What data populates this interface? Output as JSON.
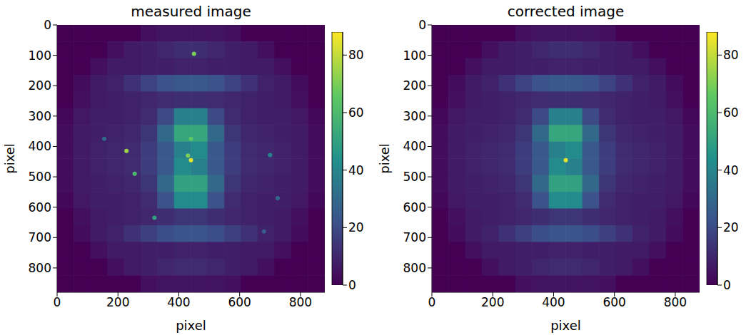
{
  "chart_data": [
    {
      "type": "heatmap",
      "title": "measured image",
      "x_label": "pixel",
      "y_label": "pixel",
      "xlim": [
        0,
        880
      ],
      "ylim": [
        880,
        0
      ],
      "xticks": [
        0,
        200,
        400,
        600,
        800
      ],
      "yticks": [
        0,
        100,
        200,
        300,
        400,
        500,
        600,
        700,
        800
      ],
      "color": "viridis",
      "cells": [
        [
          0,
          0,
          0,
          0,
          0,
          4,
          5,
          5,
          5,
          5,
          4,
          0,
          0,
          0,
          0,
          0
        ],
        [
          0,
          0,
          0,
          4,
          7,
          8,
          10,
          12,
          12,
          10,
          8,
          7,
          4,
          0,
          0,
          0
        ],
        [
          0,
          0,
          4,
          7,
          7,
          8,
          8,
          9,
          9,
          8,
          8,
          7,
          7,
          4,
          0,
          0
        ],
        [
          0,
          3,
          7,
          9,
          13,
          18,
          22,
          24,
          24,
          22,
          18,
          13,
          9,
          7,
          3,
          0
        ],
        [
          0,
          4,
          7,
          8,
          9,
          10,
          11,
          12,
          12,
          11,
          10,
          9,
          8,
          7,
          4,
          0
        ],
        [
          2,
          6,
          8,
          8,
          9,
          11,
          20,
          38,
          38,
          20,
          11,
          9,
          8,
          8,
          6,
          2
        ],
        [
          3,
          7,
          8,
          9,
          10,
          14,
          30,
          52,
          52,
          30,
          14,
          10,
          9,
          8,
          7,
          3
        ],
        [
          3,
          7,
          9,
          10,
          11,
          16,
          24,
          38,
          42,
          24,
          16,
          11,
          10,
          9,
          7,
          3
        ],
        [
          3,
          7,
          9,
          10,
          11,
          16,
          24,
          42,
          38,
          24,
          16,
          11,
          10,
          9,
          7,
          3
        ],
        [
          3,
          7,
          8,
          9,
          10,
          14,
          30,
          50,
          50,
          30,
          14,
          10,
          9,
          8,
          7,
          3
        ],
        [
          2,
          6,
          8,
          8,
          9,
          11,
          22,
          42,
          42,
          22,
          11,
          9,
          8,
          8,
          6,
          2
        ],
        [
          0,
          4,
          7,
          8,
          9,
          10,
          12,
          14,
          14,
          12,
          10,
          9,
          8,
          7,
          4,
          0
        ],
        [
          0,
          3,
          7,
          9,
          13,
          17,
          21,
          23,
          23,
          21,
          17,
          13,
          9,
          7,
          3,
          0
        ],
        [
          0,
          0,
          4,
          7,
          7,
          8,
          8,
          9,
          9,
          8,
          8,
          7,
          7,
          4,
          0,
          0
        ],
        [
          0,
          0,
          0,
          4,
          7,
          8,
          10,
          11,
          11,
          10,
          8,
          7,
          4,
          0,
          0,
          0
        ],
        [
          0,
          0,
          0,
          0,
          0,
          4,
          5,
          5,
          5,
          5,
          4,
          0,
          0,
          0,
          0,
          0
        ]
      ],
      "spots": [
        {
          "x": 440,
          "y": 445,
          "value": 85
        },
        {
          "x": 450,
          "y": 95,
          "value": 70
        },
        {
          "x": 228,
          "y": 415,
          "value": 75
        },
        {
          "x": 255,
          "y": 490,
          "value": 60
        },
        {
          "x": 320,
          "y": 635,
          "value": 50
        },
        {
          "x": 440,
          "y": 375,
          "value": 65
        },
        {
          "x": 430,
          "y": 430,
          "value": 70
        },
        {
          "x": 700,
          "y": 428,
          "value": 40
        },
        {
          "x": 725,
          "y": 570,
          "value": 30
        },
        {
          "x": 155,
          "y": 375,
          "value": 30
        },
        {
          "x": 680,
          "y": 680,
          "value": 25
        }
      ],
      "colorbar": {
        "range": [
          0,
          88
        ],
        "ticks": [
          0,
          20,
          40,
          60,
          80
        ]
      }
    },
    {
      "type": "heatmap",
      "title": "corrected image",
      "x_label": "pixel",
      "y_label": "pixel",
      "xlim": [
        0,
        880
      ],
      "ylim": [
        880,
        0
      ],
      "xticks": [
        0,
        200,
        400,
        600,
        800
      ],
      "yticks": [
        0,
        100,
        200,
        300,
        400,
        500,
        600,
        700,
        800
      ],
      "color": "viridis",
      "cells": [
        [
          0,
          0,
          0,
          0,
          0,
          4,
          5,
          5,
          5,
          5,
          4,
          0,
          0,
          0,
          0,
          0
        ],
        [
          0,
          0,
          0,
          4,
          7,
          8,
          10,
          12,
          12,
          10,
          8,
          7,
          4,
          0,
          0,
          0
        ],
        [
          0,
          0,
          4,
          7,
          7,
          8,
          8,
          9,
          9,
          8,
          8,
          7,
          7,
          4,
          0,
          0
        ],
        [
          0,
          3,
          7,
          9,
          13,
          18,
          22,
          24,
          24,
          22,
          18,
          13,
          9,
          7,
          3,
          0
        ],
        [
          0,
          4,
          7,
          8,
          9,
          10,
          11,
          12,
          12,
          11,
          10,
          9,
          8,
          7,
          4,
          0
        ],
        [
          2,
          6,
          8,
          8,
          9,
          11,
          20,
          38,
          38,
          20,
          11,
          9,
          8,
          8,
          6,
          2
        ],
        [
          3,
          7,
          8,
          9,
          10,
          14,
          30,
          52,
          52,
          30,
          14,
          10,
          9,
          8,
          7,
          3
        ],
        [
          3,
          7,
          9,
          10,
          11,
          16,
          24,
          38,
          42,
          24,
          16,
          11,
          10,
          9,
          7,
          3
        ],
        [
          3,
          7,
          9,
          10,
          11,
          16,
          24,
          42,
          38,
          24,
          16,
          11,
          10,
          9,
          7,
          3
        ],
        [
          3,
          7,
          8,
          9,
          10,
          14,
          30,
          50,
          50,
          30,
          14,
          10,
          9,
          8,
          7,
          3
        ],
        [
          2,
          6,
          8,
          8,
          9,
          11,
          22,
          42,
          42,
          22,
          11,
          9,
          8,
          8,
          6,
          2
        ],
        [
          0,
          4,
          7,
          8,
          9,
          10,
          12,
          14,
          14,
          12,
          10,
          9,
          8,
          7,
          4,
          0
        ],
        [
          0,
          3,
          7,
          9,
          13,
          17,
          21,
          23,
          23,
          21,
          17,
          13,
          9,
          7,
          3,
          0
        ],
        [
          0,
          0,
          4,
          7,
          7,
          8,
          8,
          9,
          9,
          8,
          8,
          7,
          7,
          4,
          0,
          0
        ],
        [
          0,
          0,
          0,
          4,
          7,
          8,
          10,
          11,
          11,
          10,
          8,
          7,
          4,
          0,
          0,
          0
        ],
        [
          0,
          0,
          0,
          0,
          0,
          4,
          5,
          5,
          5,
          5,
          4,
          0,
          0,
          0,
          0,
          0
        ]
      ],
      "spots": [
        {
          "x": 440,
          "y": 445,
          "value": 85
        }
      ],
      "colorbar": {
        "range": [
          0,
          88
        ],
        "ticks": [
          0,
          20,
          40,
          60,
          80
        ]
      }
    }
  ]
}
